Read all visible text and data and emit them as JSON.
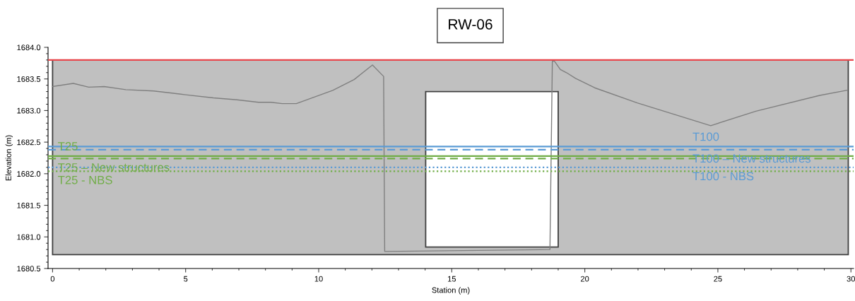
{
  "chart_data": {
    "type": "line",
    "title": "RW-06",
    "xlabel": "Station (m)",
    "ylabel": "Elevation (m)",
    "xlim": [
      -0.17,
      30.1
    ],
    "xticks": [
      0,
      5,
      10,
      15,
      20,
      25,
      30
    ],
    "ylim": [
      1680.5,
      1684.0
    ],
    "yticks": [
      {
        "value": 1680.5,
        "label": "1680.5"
      },
      {
        "value": 1681.0,
        "label": "1681.0"
      },
      {
        "value": 1681.5,
        "label": "1681.5"
      },
      {
        "value": 1682.0,
        "label": "1682.0"
      },
      {
        "value": 1682.5,
        "label": "1682.5"
      },
      {
        "value": 1683.0,
        "label": "1683.0"
      },
      {
        "value": 1683.5,
        "label": "1683.5"
      },
      {
        "value": 1684.0,
        "label": "1684.0"
      }
    ],
    "grid": false,
    "legend": false,
    "marker": "none",
    "series": [
      {
        "type": "area",
        "color": "#c0c0c0",
        "x": [
          0,
          0,
          29.9,
          29.9
        ],
        "values": [
          1680.72,
          1683.8,
          1683.8,
          1680.72
        ]
      },
      {
        "type": "area",
        "color": "#ffffff",
        "x": [
          14.02,
          14.02,
          19.0,
          19.0
        ],
        "values": [
          1680.84,
          1683.3,
          1683.3,
          1680.84
        ]
      },
      {
        "color": "#7f7f7f",
        "x": [
          0,
          0.78,
          1.36,
          1.94,
          2.75,
          3.8,
          5.0,
          6.04,
          6.93,
          7.74,
          8.2,
          8.63,
          9.16,
          10.53,
          11.33,
          12.02,
          12.44,
          12.48,
          18.69,
          18.78,
          18.86,
          19.08,
          19.31,
          19.65,
          20.37,
          21.97,
          24.73,
          26.43,
          28.83,
          29.85
        ],
        "values": [
          1683.38,
          1683.43,
          1683.37,
          1683.38,
          1683.33,
          1683.31,
          1683.25,
          1683.2,
          1683.17,
          1683.13,
          1683.13,
          1683.11,
          1683.11,
          1683.32,
          1683.49,
          1683.72,
          1683.54,
          1680.77,
          1680.8,
          1683.78,
          1683.78,
          1683.65,
          1683.6,
          1683.51,
          1683.36,
          1683.12,
          1682.76,
          1682.99,
          1683.24,
          1683.32
        ]
      }
    ],
    "ref_lines": [
      {
        "axis": "y",
        "value": 1683.8,
        "color": "#e8474c",
        "line_style": "solid"
      },
      {
        "axis": "y",
        "value": 1682.28,
        "color": "#70ad47",
        "line_style": "solid",
        "label": "T25"
      },
      {
        "axis": "y",
        "value": 1682.24,
        "color": "#70ad47",
        "line_style": "dashed",
        "label": "T25 – New structures"
      },
      {
        "axis": "y",
        "value": 1682.04,
        "color": "#70ad47",
        "line_style": "dotted",
        "label": "T25 - NBS"
      },
      {
        "axis": "y",
        "value": 1682.43,
        "color": "#5b9bd5",
        "line_style": "solid",
        "label": "T100"
      },
      {
        "axis": "y",
        "value": 1682.38,
        "color": "#5b9bd5",
        "line_style": "dashed",
        "label": "T100 – New structures"
      },
      {
        "axis": "y",
        "value": 1682.1,
        "color": "#5b9bd5",
        "line_style": "dotted",
        "label": "T100 - NBS"
      }
    ]
  }
}
